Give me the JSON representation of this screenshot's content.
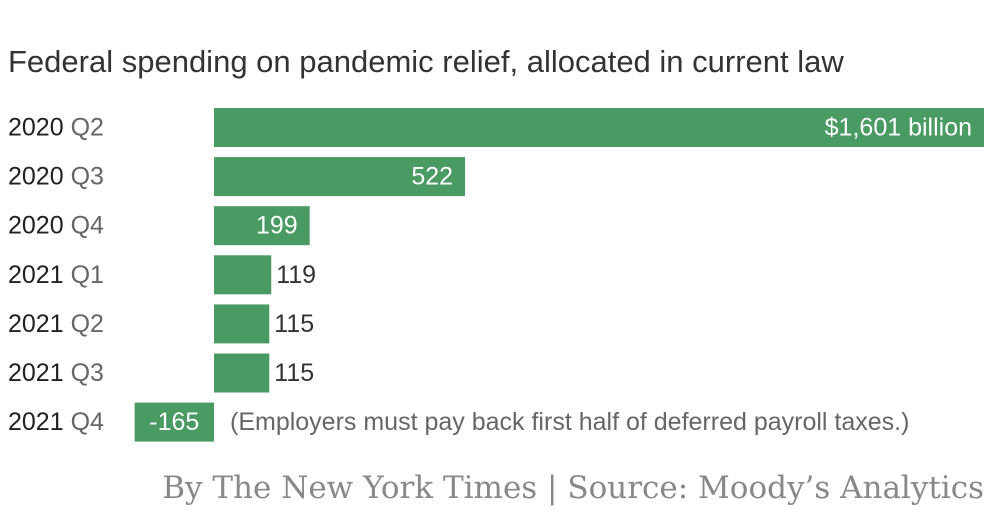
{
  "chart_data": {
    "type": "bar",
    "orientation": "horizontal",
    "title": "Federal spending on pandemic relief, allocated in current law",
    "categories": [
      {
        "year": "2020",
        "quarter": "Q2"
      },
      {
        "year": "2020",
        "quarter": "Q3"
      },
      {
        "year": "2020",
        "quarter": "Q4"
      },
      {
        "year": "2021",
        "quarter": "Q1"
      },
      {
        "year": "2021",
        "quarter": "Q2"
      },
      {
        "year": "2021",
        "quarter": "Q3"
      },
      {
        "year": "2021",
        "quarter": "Q4"
      }
    ],
    "values": [
      1601,
      522,
      199,
      119,
      115,
      115,
      -165
    ],
    "value_labels": [
      "$1,601 billion",
      "522",
      "199",
      "119",
      "115",
      "115",
      "-165"
    ],
    "annotations": [
      {
        "category_index": 6,
        "text": "(Employers must pay back first half of deferred payroll taxes.)"
      }
    ],
    "unit": "billion",
    "xlim": [
      -165,
      1601
    ],
    "bar_color": "#4a9a63",
    "grid": false,
    "legend": "none"
  },
  "footer": {
    "credit": "By The New York Times | Source: Moody’s Analytics"
  }
}
